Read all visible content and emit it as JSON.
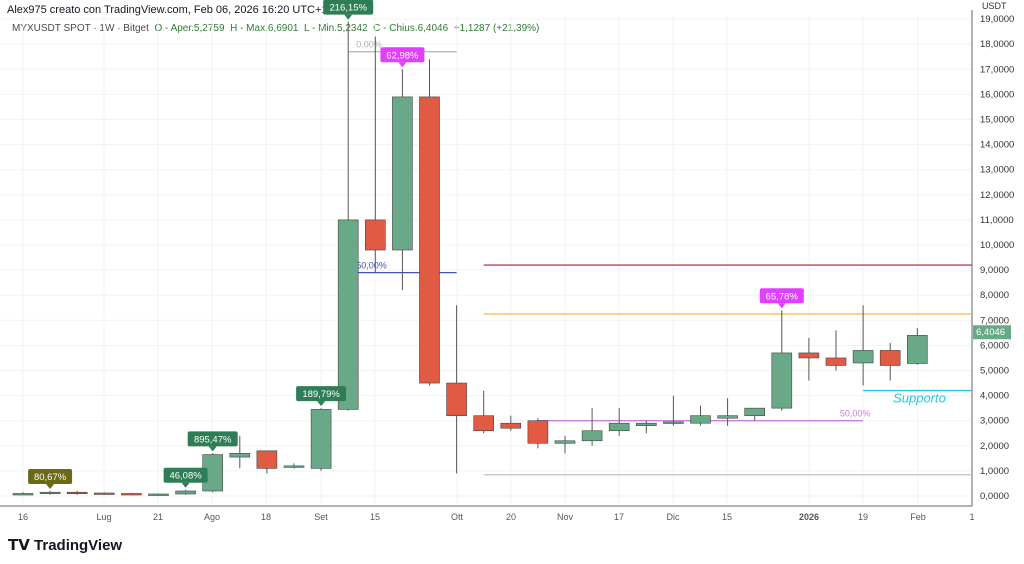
{
  "header": {
    "author_line": "Alex975 creato con TradingView.com, Feb 06, 2026 16:20 UTC+1"
  },
  "legend": {
    "symbol": "MYXUSDT SPOT · 1W · Bitget",
    "open": "O - Aper.5,2759",
    "high": "H - Max.6,6901",
    "low": "L - Min.5,2342",
    "close": "C - Chius.6,4046",
    "change": "+1,1287 (+21,39%)"
  },
  "currency": "USDT",
  "brand": "TradingView",
  "colors": {
    "up": "#6aa987",
    "down": "#e05a44",
    "label_green": "#2f7d57",
    "label_magenta": "#e040fb",
    "label_olive": "#6b6a14"
  },
  "chart_data": {
    "type": "candlestick",
    "ylim": [
      0,
      19500
    ],
    "y_ticks": [
      "0,0000",
      "1,0000",
      "2,0000",
      "3,0000",
      "4,0000",
      "5,0000",
      "6,0000",
      "7,0000",
      "8,0000",
      "9,0000",
      "10,0000",
      "11,0000",
      "12,0000",
      "13,0000",
      "14,0000",
      "15,0000",
      "16,0000",
      "17,0000",
      "18,0000",
      "19,0000"
    ],
    "x_ticks": [
      "16",
      "Lug",
      "21",
      "Ago",
      "18",
      "Set",
      "15",
      "Ott",
      "20",
      "Nov",
      "17",
      "Dic",
      "15",
      "2026",
      "19",
      "Feb",
      "1"
    ],
    "last_price": "6,4046",
    "candles": [
      [
        0.1,
        0.15,
        0.05,
        0.1
      ],
      [
        0.1,
        0.2,
        0.05,
        0.15
      ],
      [
        0.15,
        0.2,
        0.05,
        0.12
      ],
      [
        0.12,
        0.15,
        0.05,
        0.1
      ],
      [
        0.1,
        0.12,
        0.05,
        0.08
      ],
      [
        0.08,
        0.1,
        0.05,
        0.08
      ],
      [
        0.08,
        0.25,
        0.05,
        0.2
      ],
      [
        0.2,
        1.7,
        0.15,
        1.65
      ],
      [
        1.55,
        2.4,
        1.1,
        1.7
      ],
      [
        1.8,
        1.8,
        0.9,
        1.1
      ],
      [
        1.2,
        1.3,
        1.1,
        1.2
      ],
      [
        1.1,
        3.5,
        1.0,
        3.45
      ],
      [
        3.45,
        18.9,
        3.4,
        11.0
      ],
      [
        11.0,
        18.3,
        8.9,
        9.8
      ],
      [
        9.8,
        17.0,
        8.2,
        15.9
      ],
      [
        15.9,
        17.4,
        4.4,
        4.5
      ],
      [
        4.5,
        7.6,
        0.9,
        3.2
      ],
      [
        3.2,
        4.2,
        2.5,
        2.6
      ],
      [
        2.9,
        3.2,
        2.6,
        2.7
      ],
      [
        3.0,
        3.1,
        1.9,
        2.1
      ],
      [
        2.1,
        2.4,
        1.7,
        2.2
      ],
      [
        2.2,
        3.5,
        2.0,
        2.6
      ],
      [
        2.6,
        3.5,
        2.4,
        2.9
      ],
      [
        2.8,
        3.0,
        2.5,
        2.9
      ],
      [
        2.9,
        4.0,
        2.8,
        2.95
      ],
      [
        2.9,
        3.6,
        2.8,
        3.2
      ],
      [
        3.1,
        3.9,
        2.8,
        3.2
      ],
      [
        3.2,
        3.5,
        3.0,
        3.5
      ],
      [
        3.5,
        7.4,
        3.4,
        5.7
      ],
      [
        5.7,
        6.3,
        4.6,
        5.5
      ],
      [
        5.5,
        6.6,
        5.0,
        5.2
      ],
      [
        5.3,
        7.6,
        4.4,
        5.8
      ],
      [
        5.8,
        6.1,
        4.6,
        5.2
      ],
      [
        5.28,
        6.69,
        5.23,
        6.4
      ]
    ],
    "annotations": [
      {
        "text": "80,67%",
        "candle": 1,
        "color": "olive"
      },
      {
        "text": "46,08%",
        "candle": 6,
        "color": "green"
      },
      {
        "text": "895,47%",
        "candle": 7,
        "color": "green"
      },
      {
        "text": "189,79%",
        "candle": 11,
        "color": "green"
      },
      {
        "text": "216,15%",
        "candle": 12,
        "color": "green"
      },
      {
        "text": "62,98%",
        "candle": 14,
        "color": "magenta"
      },
      {
        "text": "65,78%",
        "candle": 28,
        "color": "magenta"
      }
    ],
    "levels": [
      {
        "label": "0,00%",
        "value": 17.7,
        "color": "#b0b0b0",
        "from": 12,
        "to": 16
      },
      {
        "label": "50,00%",
        "value": 8.9,
        "color": "#3f51b5",
        "from": 12,
        "to": 16
      },
      {
        "label": "",
        "value": 9.2,
        "color": "#b5434f",
        "from": 17,
        "to": 40
      },
      {
        "label": "",
        "value": 7.25,
        "color": "#f5b94a",
        "from": 17,
        "to": 40
      },
      {
        "label": "",
        "value": 0.85,
        "color": "#c8c8c8",
        "from": 17,
        "to": 40
      },
      {
        "label": "50,00%",
        "value": 3.0,
        "color": "#c77ddb",
        "from": 19,
        "to": 31
      },
      {
        "label": "Supporto",
        "value": 4.2,
        "color": "#26c6da",
        "from": 31,
        "to": 40
      }
    ]
  }
}
